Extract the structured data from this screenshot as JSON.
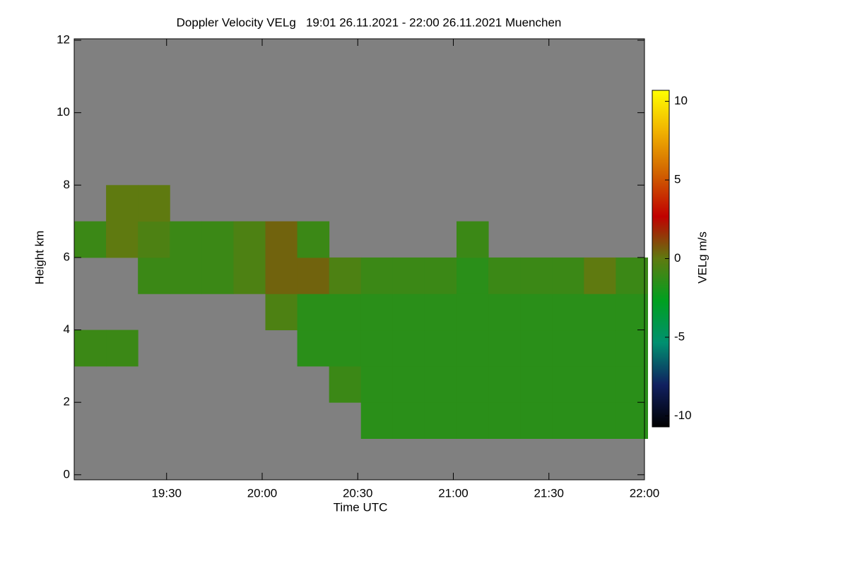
{
  "chart_data": {
    "type": "heatmap",
    "title": "Doppler Velocity VELg   19:01 26.11.2021 - 22:00 26.11.2021 Muenchen",
    "x_label": "Time UTC",
    "y_label": "Height km",
    "colorbar_label": "VELg m/s",
    "x": [
      1146,
      1156,
      1166,
      1176,
      1186,
      1196,
      1206,
      1216,
      1226,
      1236,
      1246,
      1256,
      1266,
      1276,
      1286,
      1296,
      1306,
      1316
    ],
    "y": [
      0.5,
      1.5,
      2.5,
      3.5,
      4.5,
      5.5,
      6.5,
      7.5,
      8.5,
      9.5,
      10.5,
      11.5
    ],
    "values": [
      [
        null,
        null,
        null,
        null,
        null,
        null,
        null,
        null,
        null,
        null,
        null,
        null,
        null,
        null,
        null,
        null,
        null,
        null
      ],
      [
        null,
        null,
        null,
        null,
        null,
        null,
        null,
        null,
        null,
        -1.5,
        -1.5,
        -1.5,
        -1.5,
        -1.5,
        -1.5,
        -1.5,
        -1.5,
        -1.5
      ],
      [
        null,
        null,
        null,
        null,
        null,
        null,
        null,
        null,
        -1,
        -1.5,
        -1.5,
        -1.5,
        -1.5,
        -1.5,
        -1.5,
        -1.5,
        -1.5,
        -1.5
      ],
      [
        -1,
        -1,
        null,
        null,
        null,
        null,
        null,
        -1.5,
        -1.5,
        -1.5,
        -1.5,
        -1.5,
        -1.5,
        -1.5,
        -1.5,
        -1.5,
        -1.5,
        -1.5
      ],
      [
        null,
        null,
        null,
        null,
        null,
        null,
        -0.5,
        -1.5,
        -1.5,
        -1.5,
        -1.5,
        -1.5,
        -1.5,
        -1.5,
        -1.5,
        -1.5,
        -1.5,
        -1.5
      ],
      [
        null,
        null,
        -1,
        -1,
        -1,
        -0.5,
        0.5,
        0.5,
        -0.5,
        -1,
        -1,
        -1,
        -1.5,
        -1,
        -1,
        -1,
        0,
        -1
      ],
      [
        -1,
        0,
        -0.5,
        -1,
        -1,
        -0.5,
        0.5,
        -1,
        null,
        null,
        null,
        null,
        -1,
        null,
        null,
        null,
        null,
        null
      ],
      [
        null,
        0,
        0,
        null,
        null,
        null,
        null,
        null,
        null,
        null,
        null,
        null,
        null,
        null,
        null,
        null,
        null,
        null
      ],
      [
        null,
        null,
        null,
        null,
        null,
        null,
        null,
        null,
        null,
        null,
        null,
        null,
        null,
        null,
        null,
        null,
        null,
        null
      ],
      [
        null,
        null,
        null,
        null,
        null,
        null,
        null,
        null,
        null,
        null,
        null,
        null,
        null,
        null,
        null,
        null,
        null,
        null
      ],
      [
        null,
        null,
        null,
        null,
        null,
        null,
        null,
        null,
        null,
        null,
        null,
        null,
        null,
        null,
        null,
        null,
        null,
        null
      ],
      [
        null,
        null,
        null,
        null,
        null,
        null,
        null,
        null,
        null,
        null,
        null,
        null,
        null,
        null,
        null,
        null,
        null,
        null
      ]
    ],
    "xlim": [
      1141,
      1320
    ],
    "xticks": [
      {
        "value": 1170,
        "label": "19:30"
      },
      {
        "value": 1200,
        "label": "20:00"
      },
      {
        "value": 1230,
        "label": "20:30"
      },
      {
        "value": 1260,
        "label": "21:00"
      },
      {
        "value": 1290,
        "label": "21:30"
      },
      {
        "value": 1320,
        "label": "22:00"
      }
    ],
    "ylim": [
      -0.14,
      12.04
    ],
    "yticks": [
      0,
      2,
      4,
      6,
      8,
      10,
      12
    ],
    "clim": [
      -10.7,
      10.7
    ],
    "cticks": [
      -10,
      -5,
      0,
      5,
      10
    ],
    "colorscale": [
      "#000000",
      "#102060",
      "#009070",
      "#00a020",
      "#5f7a10",
      "#c00000",
      "#d06000",
      "#f0b000",
      "#ffff00"
    ],
    "background": "#808080"
  }
}
